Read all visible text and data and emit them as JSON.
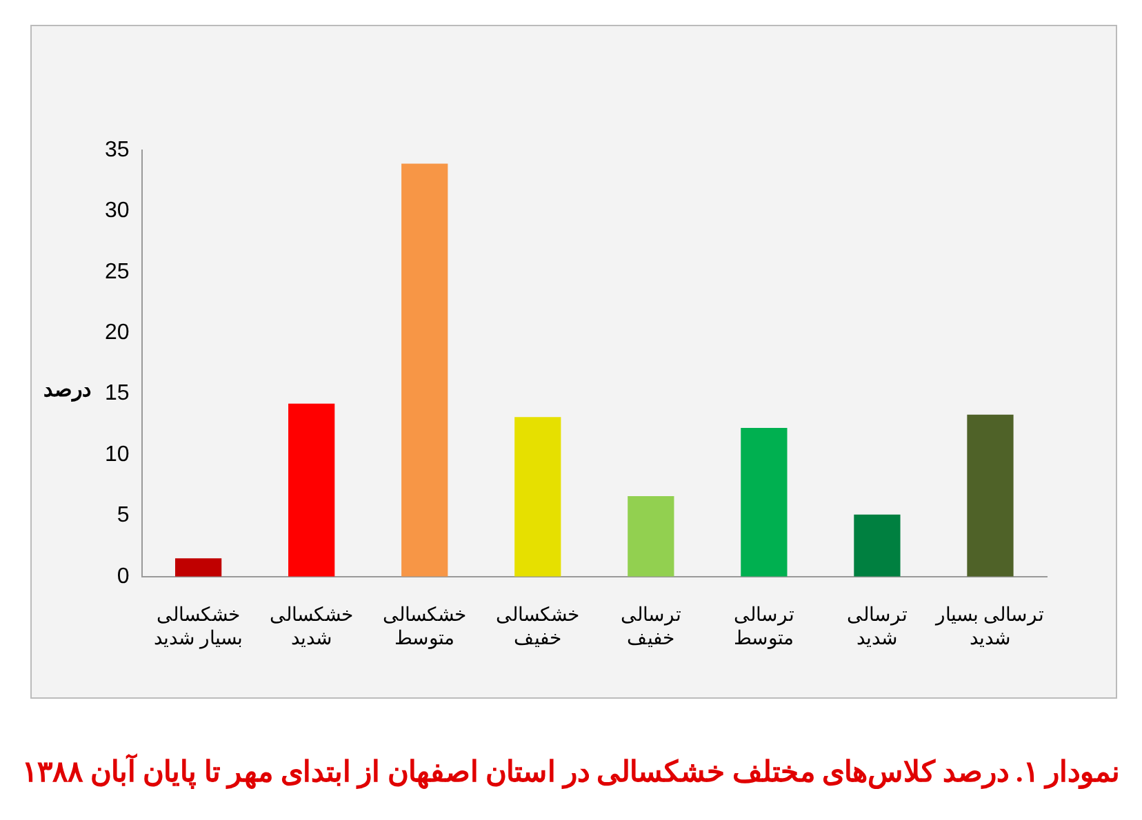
{
  "chart_data": {
    "type": "bar",
    "title": "نمودار ۱. درصد کلاس‌های مختلف خشکسالی در استان اصفهان از ابتدای مهر تا پایان آبان ۱۳۸۸",
    "ylabel": "درصد",
    "categories": [
      "خشکسالی\nبسیار شدید",
      "خشکسالی\nشدید",
      "خشکسالی\nمتوسط",
      "خشکسالی\nخفیف",
      "ترسالی\nخفیف",
      "ترسالی\nمتوسط",
      "ترسالی\nشدید",
      "ترسالی بسیار\nشدید"
    ],
    "values": [
      1.5,
      14.2,
      33.9,
      13.1,
      6.6,
      12.2,
      5.1,
      13.3
    ],
    "colors": [
      "#c00000",
      "#ff0000",
      "#f79646",
      "#e6e000",
      "#92d050",
      "#00b050",
      "#008040",
      "#4f6228"
    ],
    "ylim": [
      0,
      35
    ],
    "yticks": [
      0,
      5,
      10,
      15,
      20,
      25,
      30,
      35
    ],
    "grid": false,
    "legend": false
  }
}
